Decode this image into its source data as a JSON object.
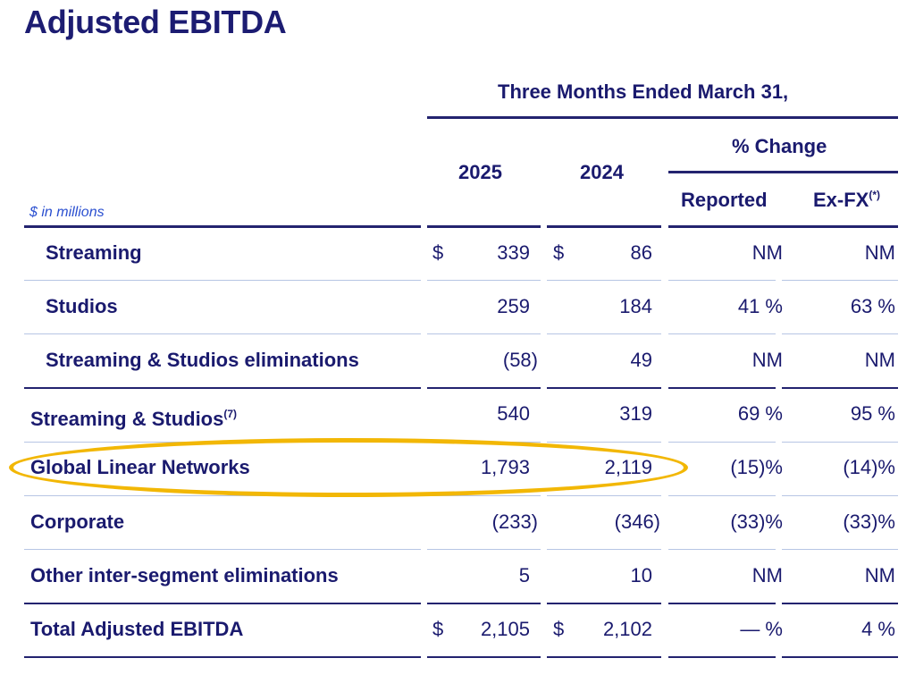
{
  "title": "Adjusted EBITDA",
  "header": {
    "period": "Three Months Ended March 31,",
    "year1": "2025",
    "year2": "2024",
    "pct_change": "% Change",
    "reported": "Reported",
    "exfx": "Ex-FX",
    "exfx_note": "(*)"
  },
  "unit_note": "$ in millions",
  "currency_symbol": "$",
  "rows": [
    {
      "label": "Streaming",
      "note": "",
      "y2025": "339",
      "y2024": "86",
      "reported": "NM",
      "exfx": "NM"
    },
    {
      "label": "Studios",
      "note": "",
      "y2025": "259",
      "y2024": "184",
      "reported": "41 %",
      "exfx": "63 %"
    },
    {
      "label": "Streaming & Studios eliminations",
      "note": "",
      "y2025": "(58)",
      "y2024": "49",
      "reported": "NM",
      "exfx": "NM"
    },
    {
      "label": "Streaming & Studios",
      "note": "(7)",
      "y2025": "540",
      "y2024": "319",
      "reported": "69 %",
      "exfx": "95 %"
    },
    {
      "label": "Global Linear Networks",
      "note": "",
      "y2025": "1,793",
      "y2024": "2,119",
      "reported": "(15)%",
      "exfx": "(14)%"
    },
    {
      "label": "Corporate",
      "note": "",
      "y2025": "(233)",
      "y2024": "(346)",
      "reported": "(33)%",
      "exfx": "(33)%"
    },
    {
      "label": "Other inter-segment eliminations",
      "note": "",
      "y2025": "5",
      "y2024": "10",
      "reported": "NM",
      "exfx": "NM"
    },
    {
      "label": "Total Adjusted EBITDA",
      "note": "",
      "y2025": "2,105",
      "y2024": "2,102",
      "reported": "— %",
      "exfx": "4 %"
    }
  ],
  "highlight_color": "#f2b705"
}
